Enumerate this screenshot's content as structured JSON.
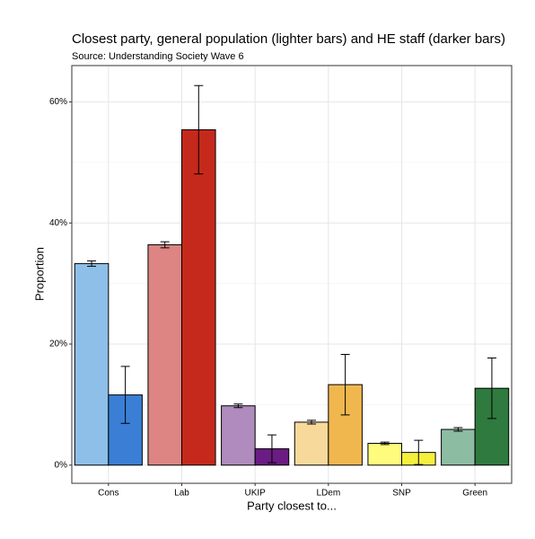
{
  "chart_data": {
    "type": "bar",
    "title": "Closest party, general population (lighter bars) and HE staff (darker bars)",
    "subtitle": "Source: Understanding Society Wave 6",
    "x_label": "Party closest to...",
    "y_label": "Proportion",
    "categories": [
      "Cons",
      "Lab",
      "UKIP",
      "LDem",
      "SNP",
      "Green"
    ],
    "series": [
      {
        "colors": [
          "#8dbfe8",
          "#dc8583",
          "#b08bbd",
          "#f7d99b",
          "#fefb7d",
          "#8cbca2"
        ],
        "values": [
          33.3,
          36.4,
          9.8,
          7.1,
          3.6,
          5.9
        ],
        "errors": [
          0.45,
          0.5,
          0.3,
          0.3,
          0.2,
          0.3
        ]
      },
      {
        "colors": [
          "#3a7fd5",
          "#c5291c",
          "#6a1c82",
          "#f0b74e",
          "#f5f03c",
          "#2f7a3e"
        ],
        "values": [
          11.6,
          55.4,
          2.7,
          13.3,
          2.1,
          12.7
        ],
        "errors": [
          4.7,
          7.3,
          2.3,
          5.0,
          2.0,
          5.0
        ]
      }
    ],
    "ylim": [
      -3,
      66
    ],
    "yticks": [
      {
        "value": 0,
        "label": "0%"
      },
      {
        "value": 20,
        "label": "20%"
      },
      {
        "value": 40,
        "label": "40%"
      },
      {
        "value": 60,
        "label": "60%"
      }
    ],
    "minor_yticks": [
      10,
      30,
      50
    ],
    "grid": true
  }
}
